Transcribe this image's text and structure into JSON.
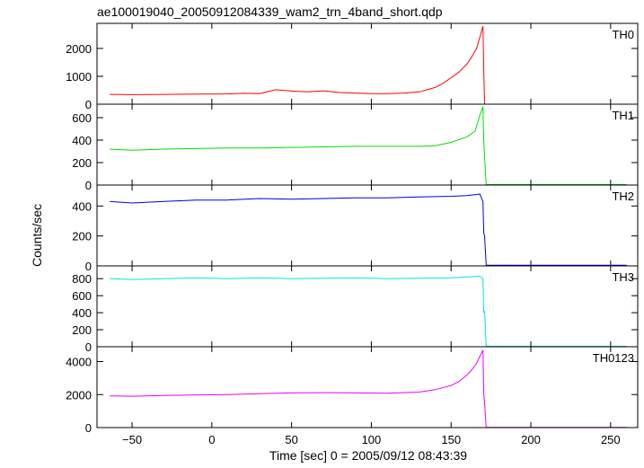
{
  "chart_data": {
    "type": "line",
    "title": "ae100019040_20050912084339_wam2_trn_4band_short.qdp",
    "xlabel": "Time [sec] 0 = 2005/09/12 08:43:39",
    "ylabel": "Counts/sec",
    "xlim": [
      -72,
      267
    ],
    "x_ticks": [
      -50,
      0,
      50,
      100,
      150,
      200,
      250
    ],
    "x_tick_labels": [
      "−50",
      "0",
      "50",
      "100",
      "150",
      "200",
      "250"
    ],
    "grid": false,
    "panels": [
      {
        "name": "TH0",
        "color": "#ff0000",
        "ylim": [
          0,
          2900
        ],
        "y_ticks": [
          0,
          1000,
          2000
        ],
        "y_tick_labels": [
          "0",
          "1000",
          "2000"
        ],
        "x": [
          -64,
          -50,
          -30,
          -10,
          10,
          20,
          30,
          40,
          50,
          60,
          70,
          80,
          90,
          100,
          110,
          120,
          130,
          140,
          145,
          150,
          155,
          160,
          163,
          166,
          168,
          170,
          170.5,
          171,
          200,
          230,
          260
        ],
        "y": [
          350,
          340,
          350,
          360,
          370,
          390,
          380,
          520,
          470,
          440,
          480,
          420,
          400,
          380,
          380,
          400,
          440,
          600,
          750,
          950,
          1150,
          1450,
          1700,
          2000,
          2400,
          2800,
          1200,
          0,
          0,
          0,
          0
        ]
      },
      {
        "name": "TH1",
        "color": "#00dd00",
        "ylim": [
          0,
          720
        ],
        "y_ticks": [
          0,
          200,
          400,
          600
        ],
        "y_tick_labels": [
          "0",
          "200",
          "400",
          "600"
        ],
        "x": [
          -64,
          -50,
          -30,
          -10,
          10,
          30,
          50,
          70,
          90,
          110,
          130,
          140,
          150,
          160,
          165,
          168,
          170,
          170.5,
          171,
          172,
          200,
          230,
          260
        ],
        "y": [
          320,
          310,
          320,
          325,
          330,
          330,
          335,
          340,
          345,
          345,
          345,
          350,
          380,
          430,
          480,
          620,
          700,
          400,
          250,
          5,
          5,
          5,
          5
        ]
      },
      {
        "name": "TH2",
        "color": "#0000dd",
        "ylim": [
          0,
          540
        ],
        "y_ticks": [
          0,
          200,
          400
        ],
        "y_tick_labels": [
          "0",
          "200",
          "400"
        ],
        "x": [
          -64,
          -50,
          -30,
          -10,
          10,
          30,
          50,
          70,
          90,
          110,
          130,
          150,
          160,
          168,
          170,
          170.5,
          171,
          172,
          200,
          230,
          260
        ],
        "y": [
          430,
          420,
          430,
          440,
          440,
          450,
          445,
          450,
          455,
          455,
          460,
          465,
          470,
          480,
          430,
          220,
          200,
          5,
          5,
          5,
          5
        ]
      },
      {
        "name": "TH3",
        "color": "#00e5e5",
        "ylim": [
          0,
          950
        ],
        "y_ticks": [
          0,
          200,
          400,
          600,
          800
        ],
        "y_tick_labels": [
          "0",
          "200",
          "400",
          "600",
          "800"
        ],
        "x": [
          -64,
          -50,
          -30,
          -10,
          10,
          30,
          50,
          70,
          90,
          110,
          130,
          150,
          160,
          168,
          170,
          170.5,
          171,
          172,
          200,
          230,
          260
        ],
        "y": [
          800,
          790,
          800,
          810,
          800,
          810,
          800,
          805,
          810,
          800,
          805,
          810,
          820,
          830,
          800,
          400,
          420,
          5,
          5,
          5,
          5
        ]
      },
      {
        "name": "TH0123",
        "color": "#ee00ee",
        "ylim": [
          0,
          4900
        ],
        "y_ticks": [
          0,
          2000,
          4000
        ],
        "y_tick_labels": [
          "0",
          "2000",
          "4000"
        ],
        "x": [
          -64,
          -50,
          -30,
          -10,
          10,
          30,
          50,
          70,
          90,
          110,
          130,
          140,
          150,
          155,
          160,
          163,
          166,
          168,
          170,
          170.5,
          171,
          172,
          200,
          230,
          260
        ],
        "y": [
          1920,
          1900,
          1950,
          1980,
          2000,
          2050,
          2100,
          2120,
          2100,
          2080,
          2150,
          2300,
          2550,
          2800,
          3200,
          3500,
          3900,
          4300,
          4700,
          2000,
          1500,
          10,
          10,
          10,
          10
        ]
      }
    ]
  }
}
